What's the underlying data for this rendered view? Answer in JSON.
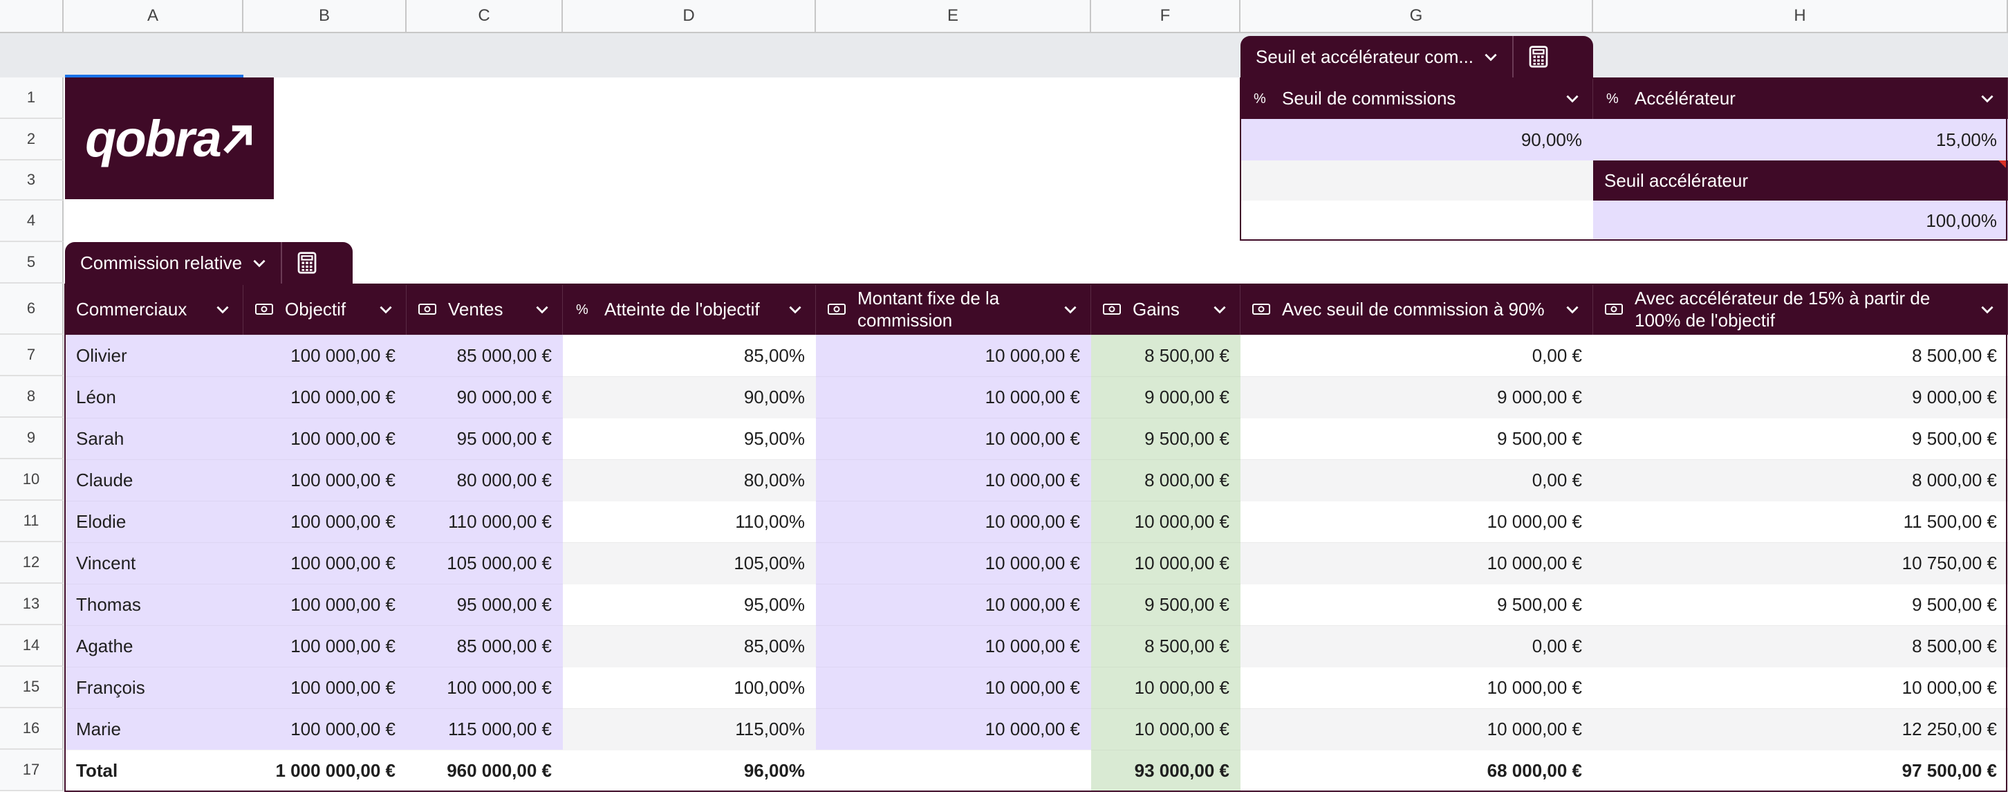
{
  "columns": [
    "A",
    "B",
    "C",
    "D",
    "E",
    "F",
    "G",
    "H"
  ],
  "rows": [
    "1",
    "2",
    "3",
    "4",
    "5",
    "6",
    "7",
    "8",
    "9",
    "10",
    "11",
    "12",
    "13",
    "14",
    "15",
    "16",
    "17"
  ],
  "logo_text": "qobra",
  "settings_table": {
    "title": "Seuil et accélérateur com...",
    "threshold_label": "Seuil de commissions",
    "threshold_value": "90,00%",
    "accelerator_label": "Accélérateur",
    "accelerator_value": "15,00%",
    "acc_threshold_label": "Seuil accélérateur",
    "acc_threshold_value": "100,00%",
    "percent_symbol": "%"
  },
  "main_table": {
    "title": "Commission relative",
    "headers": [
      "Commerciaux",
      "Objectif",
      "Ventes",
      "Atteinte de l'objectif",
      "Montant fixe de la commission",
      "Gains",
      "Avec seuil de commission à 90%",
      "Avec accélérateur de 15% à partir de 100% de l'objectif"
    ],
    "rows": [
      {
        "name": "Olivier",
        "objectif": "100 000,00 €",
        "ventes": "85 000,00 €",
        "atteinte": "85,00%",
        "fixe": "10 000,00 €",
        "gains": "8 500,00 €",
        "seuil": "0,00 €",
        "accel": "8 500,00 €"
      },
      {
        "name": "Léon",
        "objectif": "100 000,00 €",
        "ventes": "90 000,00 €",
        "atteinte": "90,00%",
        "fixe": "10 000,00 €",
        "gains": "9 000,00 €",
        "seuil": "9 000,00 €",
        "accel": "9 000,00 €"
      },
      {
        "name": "Sarah",
        "objectif": "100 000,00 €",
        "ventes": "95 000,00 €",
        "atteinte": "95,00%",
        "fixe": "10 000,00 €",
        "gains": "9 500,00 €",
        "seuil": "9 500,00 €",
        "accel": "9 500,00 €"
      },
      {
        "name": "Claude",
        "objectif": "100 000,00 €",
        "ventes": "80 000,00 €",
        "atteinte": "80,00%",
        "fixe": "10 000,00 €",
        "gains": "8 000,00 €",
        "seuil": "0,00 €",
        "accel": "8 000,00 €"
      },
      {
        "name": "Elodie",
        "objectif": "100 000,00 €",
        "ventes": "110 000,00 €",
        "atteinte": "110,00%",
        "fixe": "10 000,00 €",
        "gains": "10 000,00 €",
        "seuil": "10 000,00 €",
        "accel": "11 500,00 €"
      },
      {
        "name": "Vincent",
        "objectif": "100 000,00 €",
        "ventes": "105 000,00 €",
        "atteinte": "105,00%",
        "fixe": "10 000,00 €",
        "gains": "10 000,00 €",
        "seuil": "10 000,00 €",
        "accel": "10 750,00 €"
      },
      {
        "name": "Thomas",
        "objectif": "100 000,00 €",
        "ventes": "95 000,00 €",
        "atteinte": "95,00%",
        "fixe": "10 000,00 €",
        "gains": "9 500,00 €",
        "seuil": "9 500,00 €",
        "accel": "9 500,00 €"
      },
      {
        "name": "Agathe",
        "objectif": "100 000,00 €",
        "ventes": "85 000,00 €",
        "atteinte": "85,00%",
        "fixe": "10 000,00 €",
        "gains": "8 500,00 €",
        "seuil": "0,00 €",
        "accel": "8 500,00 €"
      },
      {
        "name": "François",
        "objectif": "100 000,00 €",
        "ventes": "100 000,00 €",
        "atteinte": "100,00%",
        "fixe": "10 000,00 €",
        "gains": "10 000,00 €",
        "seuil": "10 000,00 €",
        "accel": "10 000,00 €"
      },
      {
        "name": "Marie",
        "objectif": "100 000,00 €",
        "ventes": "115 000,00 €",
        "atteinte": "115,00%",
        "fixe": "10 000,00 €",
        "gains": "10 000,00 €",
        "seuil": "10 000,00 €",
        "accel": "12 250,00 €"
      }
    ],
    "total": {
      "name": "Total",
      "objectif": "1 000 000,00 €",
      "ventes": "960 000,00 €",
      "atteinte": "96,00%",
      "fixe": "",
      "gains": "93 000,00 €",
      "seuil": "68 000,00 €",
      "accel": "97 500,00 €"
    }
  },
  "colors": {
    "header_bg": "#3f0a27",
    "input_purple": "#e6defd",
    "gains_green": "#d9ead3"
  }
}
